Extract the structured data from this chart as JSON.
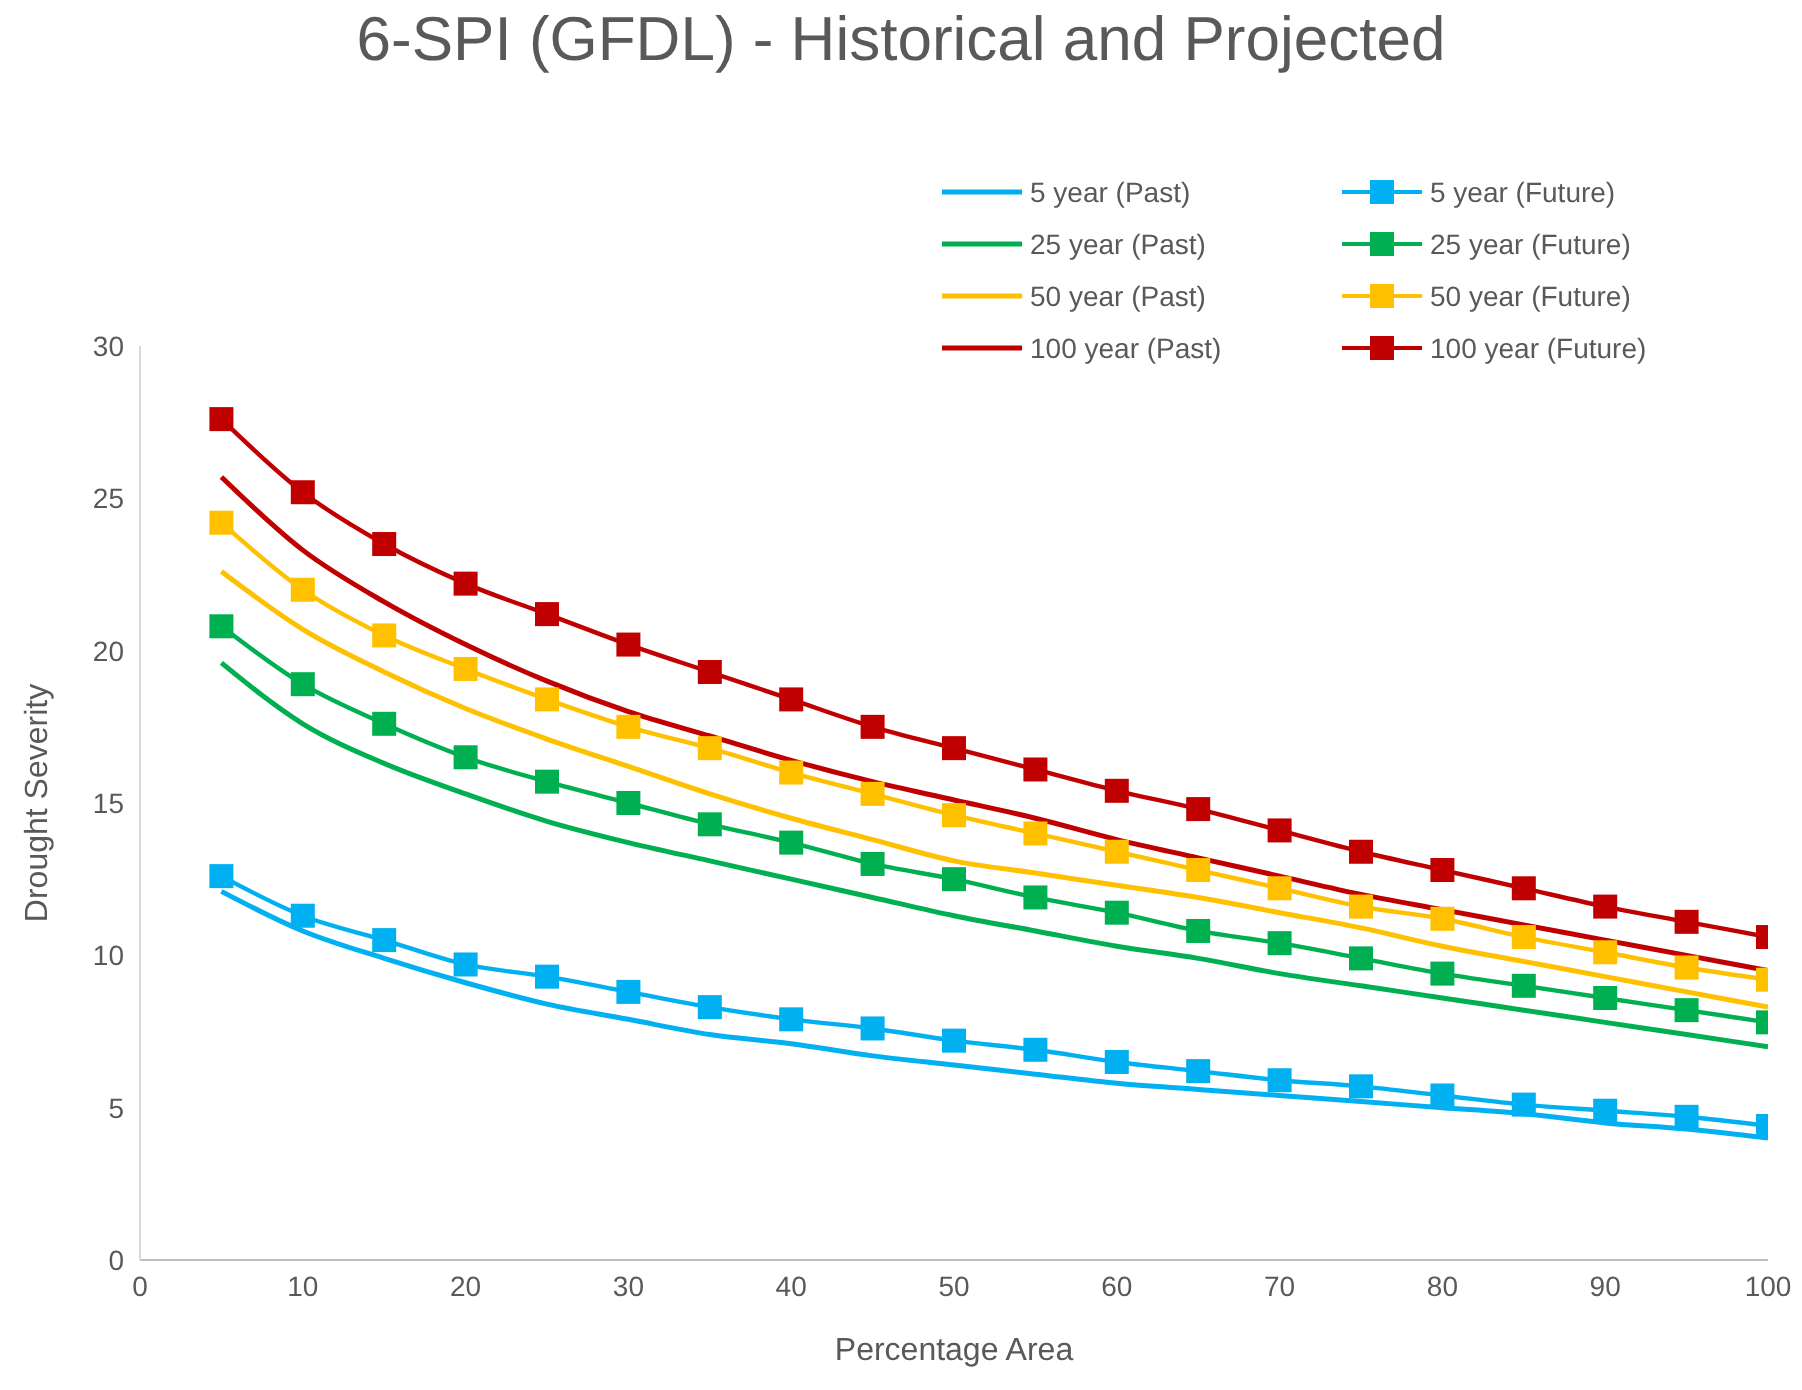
{
  "chart_data": {
    "type": "line",
    "title": "6-SPI (GFDL) - Historical and Projected",
    "xlabel": "Percentage Area",
    "ylabel": "Drought Severity",
    "x": [
      5,
      10,
      15,
      20,
      25,
      30,
      35,
      40,
      45,
      50,
      55,
      60,
      65,
      70,
      75,
      80,
      85,
      90,
      95,
      100
    ],
    "xlim": [
      0,
      100
    ],
    "xticks": [
      0,
      10,
      20,
      30,
      40,
      50,
      60,
      70,
      80,
      90,
      100
    ],
    "ylim": [
      0,
      30
    ],
    "yticks": [
      0,
      5,
      10,
      15,
      20,
      25,
      30
    ],
    "grid": false,
    "legend": "top right",
    "line_style": "solid",
    "series": [
      {
        "name": "5 year (Past)",
        "color": "#00b0f0",
        "marker": "none",
        "values": [
          12.1,
          10.8,
          9.9,
          9.1,
          8.4,
          7.9,
          7.4,
          7.1,
          6.7,
          6.4,
          6.1,
          5.8,
          5.6,
          5.4,
          5.2,
          5.0,
          4.8,
          4.5,
          4.3,
          4.0
        ]
      },
      {
        "name": "5 year (Future)",
        "color": "#00b0f0",
        "marker": "square",
        "values": [
          12.6,
          11.3,
          10.5,
          9.7,
          9.3,
          8.8,
          8.3,
          7.9,
          7.6,
          7.2,
          6.9,
          6.5,
          6.2,
          5.9,
          5.7,
          5.4,
          5.1,
          4.9,
          4.7,
          4.4
        ]
      },
      {
        "name": "25 year (Past)",
        "color": "#00b050",
        "marker": "none",
        "values": [
          19.6,
          17.6,
          16.3,
          15.3,
          14.4,
          13.7,
          13.1,
          12.5,
          11.9,
          11.3,
          10.8,
          10.3,
          9.9,
          9.4,
          9.0,
          8.6,
          8.2,
          7.8,
          7.4,
          7.0
        ]
      },
      {
        "name": "25 year (Future)",
        "color": "#00b050",
        "marker": "square",
        "values": [
          20.8,
          18.9,
          17.6,
          16.5,
          15.7,
          15.0,
          14.3,
          13.7,
          13.0,
          12.5,
          11.9,
          11.4,
          10.8,
          10.4,
          9.9,
          9.4,
          9.0,
          8.6,
          8.2,
          7.8
        ]
      },
      {
        "name": "50 year (Past)",
        "color": "#ffc000",
        "marker": "none",
        "values": [
          22.6,
          20.7,
          19.3,
          18.1,
          17.1,
          16.2,
          15.3,
          14.5,
          13.8,
          13.1,
          12.7,
          12.3,
          11.9,
          11.4,
          10.9,
          10.3,
          9.8,
          9.3,
          8.8,
          8.3
        ]
      },
      {
        "name": "50 year (Future)",
        "color": "#ffc000",
        "marker": "square",
        "values": [
          24.2,
          22.0,
          20.5,
          19.4,
          18.4,
          17.5,
          16.8,
          16.0,
          15.3,
          14.6,
          14.0,
          13.4,
          12.8,
          12.2,
          11.6,
          11.2,
          10.6,
          10.1,
          9.6,
          9.2
        ]
      },
      {
        "name": "100 year (Past)",
        "color": "#c00000",
        "marker": "none",
        "values": [
          25.7,
          23.3,
          21.6,
          20.2,
          19.0,
          18.0,
          17.2,
          16.4,
          15.7,
          15.1,
          14.5,
          13.8,
          13.2,
          12.6,
          12.0,
          11.5,
          11.0,
          10.5,
          10.0,
          9.5
        ]
      },
      {
        "name": "100 year (Future)",
        "color": "#c00000",
        "marker": "square",
        "values": [
          27.6,
          25.2,
          23.5,
          22.2,
          21.2,
          20.2,
          19.3,
          18.4,
          17.5,
          16.8,
          16.1,
          15.4,
          14.8,
          14.1,
          13.4,
          12.8,
          12.2,
          11.6,
          11.1,
          10.6
        ]
      }
    ]
  }
}
